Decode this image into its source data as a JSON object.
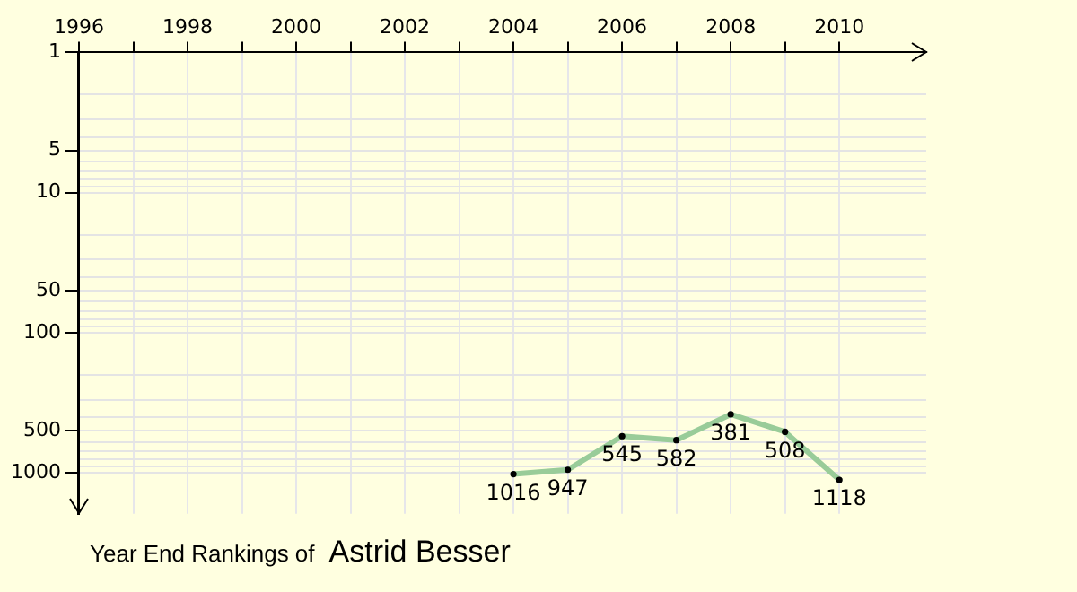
{
  "chart_data": {
    "type": "line",
    "title": "Year End Rankings of",
    "subtitle": "Astrid Besser",
    "x": [
      2004,
      2005,
      2006,
      2007,
      2008,
      2009,
      2010
    ],
    "series": [
      {
        "color": "#99cc99",
        "values": [
          1016,
          947,
          545,
          582,
          381,
          508,
          1118
        ]
      }
    ],
    "xlim": [
      1996,
      2011.6
    ],
    "xticks": [
      1996,
      {
        "value": 1997,
        "label": null
      },
      1998,
      {
        "value": 1999,
        "label": null
      },
      2000,
      {
        "value": 2001,
        "label": null
      },
      2002,
      {
        "value": 2003,
        "label": null
      },
      2004,
      {
        "value": 2005,
        "label": null
      },
      2006,
      {
        "value": 2007,
        "label": null
      },
      2008,
      {
        "value": 2009,
        "label": null
      },
      2010
    ],
    "ylim": [
      1950,
      1
    ],
    "yticks": [
      1,
      {
        "value": 2,
        "label": null
      },
      {
        "value": 3,
        "label": null
      },
      {
        "value": 4,
        "label": null
      },
      5,
      {
        "value": 6,
        "label": null
      },
      {
        "value": 7,
        "label": null
      },
      {
        "value": 8,
        "label": null
      },
      {
        "value": 9,
        "label": null
      },
      10,
      {
        "value": 20,
        "label": null
      },
      {
        "value": 30,
        "label": null
      },
      {
        "value": 40,
        "label": null
      },
      50,
      {
        "value": 60,
        "label": null
      },
      {
        "value": 70,
        "label": null
      },
      {
        "value": 80,
        "label": null
      },
      {
        "value": 90,
        "label": null
      },
      100,
      {
        "value": 200,
        "label": null
      },
      {
        "value": 300,
        "label": null
      },
      {
        "value": 400,
        "label": null
      },
      500,
      {
        "value": 600,
        "label": null
      },
      {
        "value": 700,
        "label": null
      },
      {
        "value": 800,
        "label": null
      },
      {
        "value": 900,
        "label": null
      },
      1000
    ],
    "log": "y",
    "grid": true,
    "marker": "circle",
    "line_style": "solid",
    "data_labels": true
  }
}
